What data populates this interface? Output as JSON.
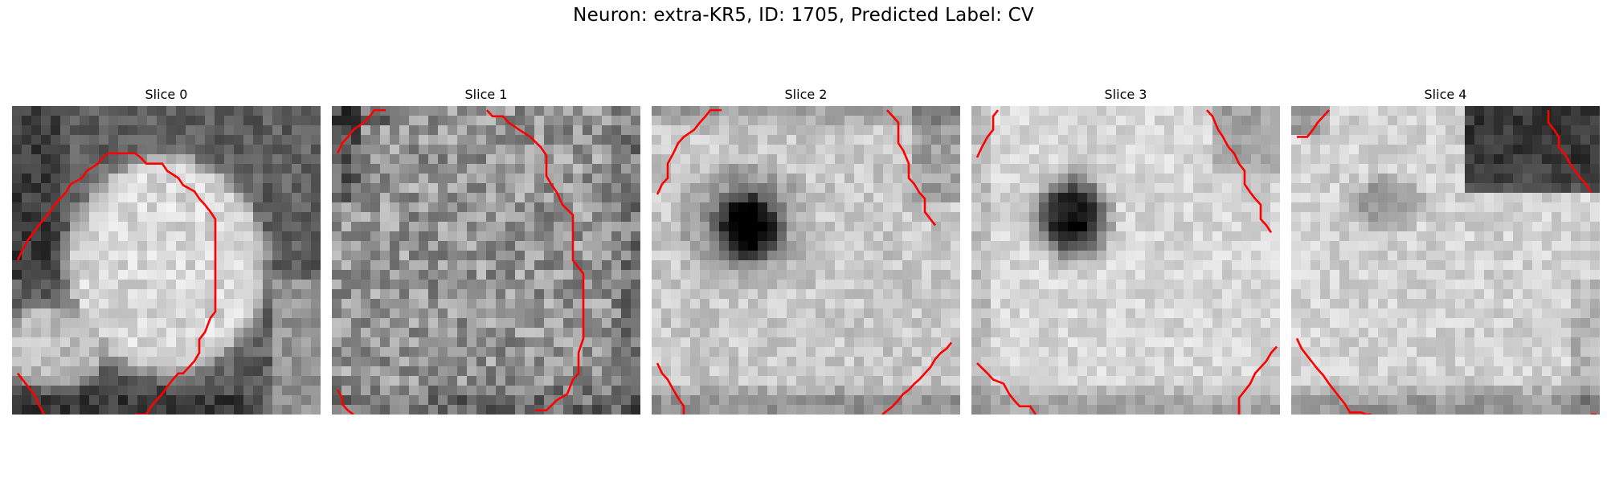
{
  "figure": {
    "title": "Neuron: extra-KR5, ID: 1705, Predicted Label: CV"
  },
  "slices": [
    {
      "label": "Slice 0",
      "contour_color": "#ff0000"
    },
    {
      "label": "Slice 1",
      "contour_color": "#ff0000"
    },
    {
      "label": "Slice 2",
      "contour_color": "#ff0000"
    },
    {
      "label": "Slice 3",
      "contour_color": "#ff0000"
    },
    {
      "label": "Slice 4",
      "contour_color": "#ff0000"
    }
  ]
}
